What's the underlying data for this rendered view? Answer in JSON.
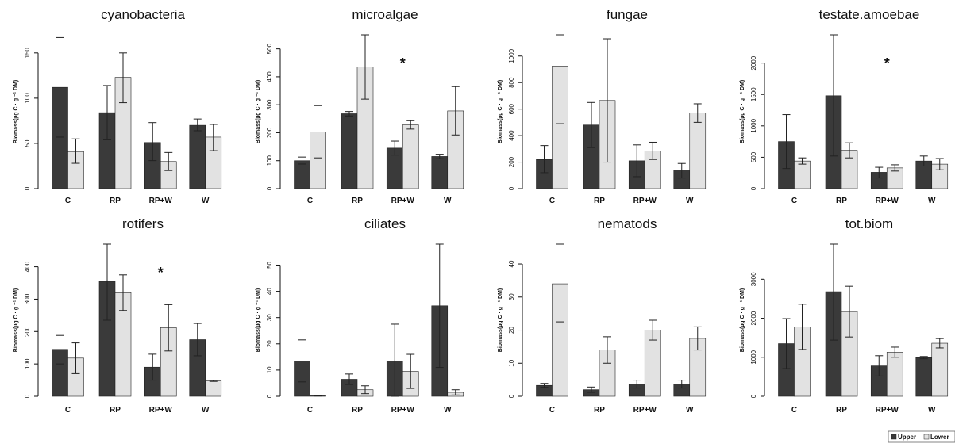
{
  "legend": {
    "labels": [
      "Upper",
      "Lower"
    ],
    "colors": [
      "#3a3a3a",
      "#e2e2e2"
    ]
  },
  "chart_data": [
    {
      "type": "bar",
      "title": "cyanobacteria",
      "ylabel": "Biomass(µg C · g ⁻¹ DM)",
      "categories": [
        "C",
        "RP",
        "RP+W",
        "W"
      ],
      "ylim": [
        0,
        170
      ],
      "yticks": [
        0,
        50,
        100,
        150
      ],
      "significant": [],
      "series": [
        {
          "name": "Upper",
          "values": [
            112,
            84,
            51,
            70
          ],
          "err_low": [
            57,
            54,
            31,
            64
          ],
          "err_high": [
            167,
            114,
            73,
            77
          ]
        },
        {
          "name": "Lower",
          "values": [
            41,
            123,
            30,
            57
          ],
          "err_low": [
            28,
            95,
            20,
            42
          ],
          "err_high": [
            55,
            150,
            40,
            71
          ]
        }
      ]
    },
    {
      "type": "bar",
      "title": "microalgae",
      "ylabel": "Biomass(µg C · g ⁻¹ DM)",
      "categories": [
        "C",
        "RP",
        "RP+W",
        "W"
      ],
      "ylim": [
        0,
        550
      ],
      "yticks": [
        0,
        100,
        200,
        300,
        400,
        500
      ],
      "significant": [
        "RP+W"
      ],
      "series": [
        {
          "name": "Upper",
          "values": [
            100,
            268,
            145,
            115
          ],
          "err_low": [
            88,
            260,
            120,
            107
          ],
          "err_high": [
            113,
            276,
            170,
            123
          ]
        },
        {
          "name": "Lower",
          "values": [
            203,
            435,
            228,
            278
          ],
          "err_low": [
            110,
            320,
            213,
            192
          ],
          "err_high": [
            297,
            550,
            243,
            365
          ]
        }
      ]
    },
    {
      "type": "bar",
      "title": "fungae",
      "ylabel": "Biomass(µg C · g ⁻¹ DM)",
      "categories": [
        "C",
        "RP",
        "RP+W",
        "W"
      ],
      "ylim": [
        0,
        1160
      ],
      "yticks": [
        0,
        200,
        400,
        600,
        800,
        1000
      ],
      "significant": [],
      "series": [
        {
          "name": "Upper",
          "values": [
            220,
            480,
            210,
            140
          ],
          "err_low": [
            120,
            310,
            90,
            80
          ],
          "err_high": [
            325,
            650,
            330,
            190
          ]
        },
        {
          "name": "Lower",
          "values": [
            925,
            665,
            285,
            570
          ],
          "err_low": [
            490,
            200,
            220,
            500
          ],
          "err_high": [
            1160,
            1130,
            350,
            640
          ]
        }
      ]
    },
    {
      "type": "bar",
      "title": "testate.amoebae",
      "ylabel": "Biomass(µg C · g ⁻¹ DM)",
      "categories": [
        "C",
        "RP",
        "RP+W",
        "W"
      ],
      "ylim": [
        0,
        2450
      ],
      "yticks": [
        0,
        500,
        1000,
        1500,
        2000
      ],
      "significant": [
        "RP+W"
      ],
      "series": [
        {
          "name": "Upper",
          "values": [
            750,
            1480,
            260,
            440
          ],
          "err_low": [
            320,
            520,
            170,
            360
          ],
          "err_high": [
            1180,
            2450,
            340,
            520
          ]
        },
        {
          "name": "Lower",
          "values": [
            440,
            610,
            330,
            390
          ],
          "err_low": [
            390,
            490,
            280,
            300
          ],
          "err_high": [
            490,
            730,
            380,
            480
          ]
        }
      ]
    },
    {
      "type": "bar",
      "title": "rotifers",
      "ylabel": "Biomass(µg C · g ⁻¹ DM)",
      "categories": [
        "C",
        "RP",
        "RP+W",
        "W"
      ],
      "ylim": [
        0,
        470
      ],
      "yticks": [
        0,
        100,
        200,
        300,
        400
      ],
      "significant": [
        "RP+W"
      ],
      "series": [
        {
          "name": "Upper",
          "values": [
            145,
            355,
            90,
            175
          ],
          "err_low": [
            100,
            235,
            50,
            125
          ],
          "err_high": [
            188,
            470,
            130,
            225
          ]
        },
        {
          "name": "Lower",
          "values": [
            118,
            320,
            212,
            48
          ],
          "err_low": [
            70,
            265,
            140,
            46
          ],
          "err_high": [
            165,
            375,
            283,
            50
          ]
        }
      ]
    },
    {
      "type": "bar",
      "title": "ciliates",
      "ylabel": "Biomass(µg C · g ⁻¹ DM)",
      "categories": [
        "C",
        "RP",
        "RP+W",
        "W"
      ],
      "ylim": [
        0,
        58
      ],
      "yticks": [
        0,
        10,
        20,
        30,
        40,
        50
      ],
      "significant": [],
      "series": [
        {
          "name": "Upper",
          "values": [
            13.5,
            6.5,
            13.5,
            34.5
          ],
          "err_low": [
            5.5,
            4.5,
            0,
            11
          ],
          "err_high": [
            21.5,
            8.5,
            27.5,
            58
          ]
        },
        {
          "name": "Lower",
          "values": [
            0.2,
            2.5,
            9.5,
            1.5
          ],
          "err_low": [
            0.1,
            1,
            3,
            0.5
          ],
          "err_high": [
            0.3,
            4,
            16,
            2.5
          ]
        }
      ]
    },
    {
      "type": "bar",
      "title": "nematods",
      "ylabel": "Biomass(µg C · g ⁻¹ DM)",
      "categories": [
        "C",
        "RP",
        "RP+W",
        "W"
      ],
      "ylim": [
        0,
        46
      ],
      "yticks": [
        0,
        10,
        20,
        30,
        40
      ],
      "significant": [],
      "series": [
        {
          "name": "Upper",
          "values": [
            3.3,
            2,
            3.7,
            3.7
          ],
          "err_low": [
            2.7,
            1.2,
            2.5,
            2.5
          ],
          "err_high": [
            3.9,
            2.8,
            4.9,
            4.9
          ]
        },
        {
          "name": "Lower",
          "values": [
            34,
            14,
            20,
            17.5
          ],
          "err_low": [
            22.5,
            10,
            17,
            14
          ],
          "err_high": [
            46,
            18,
            23,
            21
          ]
        }
      ]
    },
    {
      "type": "bar",
      "title": "tot.biom",
      "ylabel": "Biomass(µg C · g ⁻¹ DM)",
      "categories": [
        "C",
        "RP",
        "RP+W",
        "W"
      ],
      "ylim": [
        0,
        3900
      ],
      "yticks": [
        0,
        1000,
        2000,
        3000
      ],
      "significant": [],
      "series": [
        {
          "name": "Upper",
          "values": [
            1350,
            2680,
            780,
            990
          ],
          "err_low": [
            710,
            1440,
            520,
            960
          ],
          "err_high": [
            1990,
            3900,
            1040,
            1020
          ]
        },
        {
          "name": "Lower",
          "values": [
            1780,
            2170,
            1130,
            1360
          ],
          "err_low": [
            1200,
            1520,
            1000,
            1240
          ],
          "err_high": [
            2360,
            2820,
            1260,
            1480
          ]
        }
      ]
    }
  ]
}
